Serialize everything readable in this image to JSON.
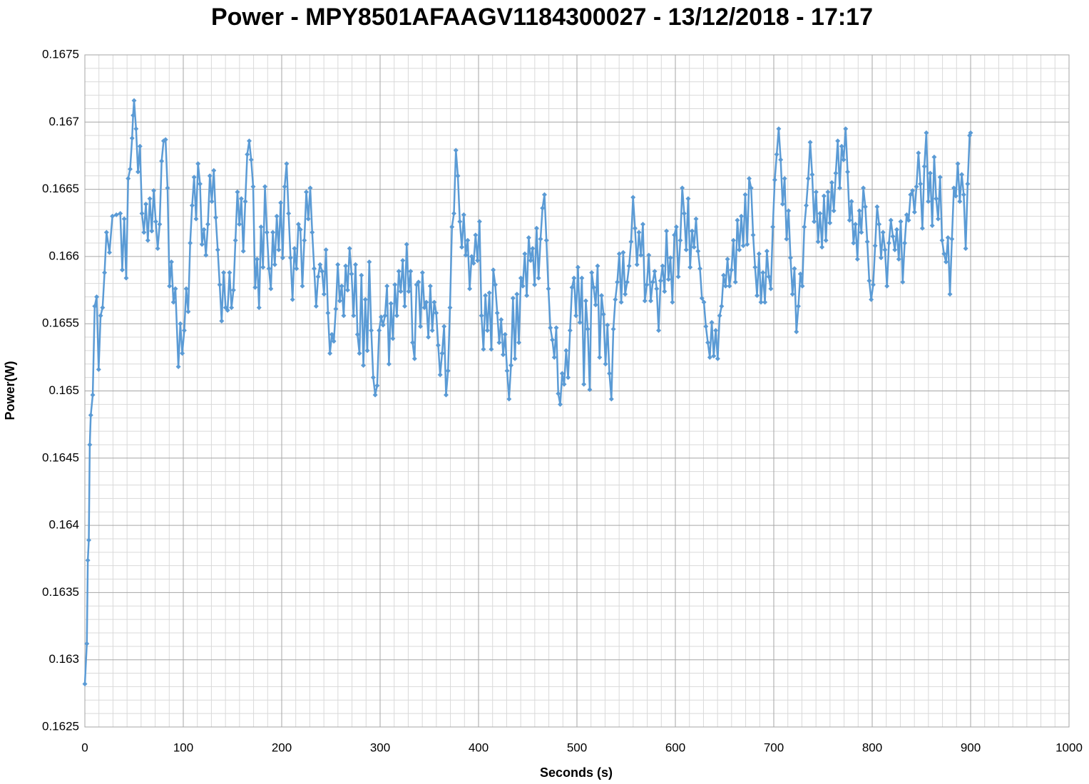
{
  "chart_data": {
    "type": "line",
    "title": "Power - MPY8501AFAAGV1184300027 - 13/12/2018 - 17:17",
    "xlabel": "Seconds (s)",
    "ylabel": "Power(W)",
    "xlim": [
      0,
      1000
    ],
    "xticks": [
      0,
      100,
      200,
      300,
      400,
      500,
      600,
      700,
      800,
      900,
      1000
    ],
    "ylim": [
      0.1625,
      0.1675
    ],
    "yticks": [
      0.1625,
      0.163,
      0.1635,
      0.164,
      0.1645,
      0.165,
      0.1655,
      0.166,
      0.1665,
      0.167,
      0.1675
    ],
    "grid": true,
    "x": [
      0,
      2,
      3,
      4,
      5,
      6,
      8,
      10,
      12,
      14,
      16,
      18,
      20,
      22,
      25,
      28,
      32,
      36,
      38,
      40,
      42,
      44,
      46,
      48,
      49,
      50,
      52,
      54,
      56,
      58,
      60,
      62,
      64,
      66,
      68,
      70,
      72,
      74,
      76,
      78,
      80,
      82,
      84,
      86,
      88,
      90,
      92,
      95,
      97,
      99,
      101,
      103,
      105,
      107,
      109,
      111,
      113,
      115,
      117,
      119,
      121,
      123,
      125,
      127,
      129,
      131,
      133,
      135,
      137,
      139,
      141,
      143,
      145,
      147,
      149,
      151,
      153,
      155,
      157,
      159,
      161,
      163,
      165,
      167,
      169,
      171,
      173,
      175,
      177,
      179,
      181,
      183,
      185,
      187,
      189,
      191,
      193,
      195,
      197,
      199,
      201,
      203,
      205,
      207,
      209,
      211,
      213,
      215,
      217,
      219,
      221,
      223,
      225,
      227,
      229,
      231,
      233,
      235,
      237,
      239,
      241,
      243,
      245,
      247,
      249,
      251,
      253,
      255,
      257,
      259,
      261,
      263,
      265,
      267,
      269,
      271,
      273,
      275,
      277,
      279,
      281,
      283,
      285,
      287,
      289,
      291,
      293,
      295,
      297,
      299,
      301,
      303,
      305,
      307,
      309,
      311,
      313,
      315,
      317,
      319,
      321,
      323,
      325,
      327,
      329,
      331,
      333,
      335,
      337,
      339,
      341,
      343,
      345,
      347,
      349,
      351,
      353,
      355,
      357,
      359,
      361,
      363,
      365,
      367,
      369,
      371,
      373,
      375,
      377,
      379,
      381,
      383,
      385,
      387,
      389,
      391,
      393,
      395,
      397,
      399,
      401,
      403,
      405,
      407,
      409,
      411,
      413,
      415,
      417,
      419,
      421,
      423,
      425,
      427,
      429,
      431,
      433,
      435,
      437,
      439,
      441,
      443,
      445,
      447,
      449,
      451,
      453,
      455,
      457,
      459,
      461,
      463,
      465,
      467,
      469,
      471,
      473,
      475,
      477,
      479,
      481,
      483,
      485,
      487,
      489,
      491,
      493,
      495,
      497,
      499,
      501,
      503,
      505,
      507,
      509,
      511,
      513,
      515,
      517,
      519,
      521,
      523,
      525,
      527,
      529,
      531,
      533,
      535,
      537,
      539,
      541,
      543,
      545,
      547,
      549,
      551,
      553,
      555,
      557,
      559,
      561,
      563,
      565,
      567,
      569,
      571,
      573,
      575,
      577,
      579,
      581,
      583,
      585,
      587,
      589,
      591,
      593,
      595,
      597,
      599,
      601,
      603,
      605,
      607,
      609,
      611,
      613,
      615,
      617,
      619,
      621,
      623,
      625,
      627,
      629,
      631,
      633,
      635,
      637,
      639,
      641,
      643,
      645,
      647,
      649,
      651,
      653,
      655,
      657,
      659,
      661,
      663,
      665,
      667,
      669,
      671,
      673,
      675,
      677,
      679,
      681,
      683,
      685,
      687,
      689,
      691,
      693,
      695,
      697,
      699,
      701,
      703,
      705,
      707,
      709,
      711,
      713,
      715,
      717,
      719,
      721,
      723,
      725,
      727,
      729,
      731,
      733,
      735,
      737,
      739,
      741,
      743,
      745,
      747,
      749,
      751,
      753,
      755,
      757,
      759,
      761,
      763,
      765,
      767,
      769,
      771,
      773,
      775,
      777,
      779,
      781,
      783,
      785,
      787,
      789,
      791,
      793,
      795,
      797,
      799,
      801,
      803,
      805,
      807,
      809,
      811,
      813,
      815,
      817,
      819,
      821,
      823,
      825,
      827,
      829,
      831,
      833,
      835,
      837,
      839,
      841,
      843,
      845,
      847,
      849,
      851,
      853,
      855,
      857,
      859,
      861,
      863,
      865,
      867,
      869,
      871,
      873,
      875,
      877,
      879,
      881,
      883,
      885,
      887,
      889,
      891,
      893,
      895,
      897,
      899,
      900
    ],
    "series": [
      {
        "name": "Power",
        "color": "#5b9bd5",
        "values": [
          0.16282,
          0.16312,
          0.16374,
          0.16389,
          0.1646,
          0.16482,
          0.16497,
          0.16563,
          0.1657,
          0.16516,
          0.16556,
          0.16562,
          0.16588,
          0.16618,
          0.16603,
          0.1663,
          0.16631,
          0.16632,
          0.1659,
          0.16628,
          0.16584,
          0.16658,
          0.16665,
          0.16688,
          0.16705,
          0.16716,
          0.16695,
          0.16663,
          0.16682,
          0.16632,
          0.16618,
          0.16639,
          0.16612,
          0.16643,
          0.16619,
          0.16649,
          0.16626,
          0.16606,
          0.16624,
          0.16671,
          0.16686,
          0.16687,
          0.16651,
          0.16578,
          0.16596,
          0.16566,
          0.16576,
          0.16518,
          0.1655,
          0.16528,
          0.16545,
          0.16576,
          0.16559,
          0.1661,
          0.16638,
          0.16659,
          0.16628,
          0.16669,
          0.16654,
          0.16609,
          0.1662,
          0.16601,
          0.16624,
          0.1666,
          0.16641,
          0.16664,
          0.16629,
          0.16605,
          0.16579,
          0.16552,
          0.16588,
          0.16562,
          0.1656,
          0.16588,
          0.16562,
          0.16575,
          0.16612,
          0.16648,
          0.16624,
          0.16643,
          0.16604,
          0.16641,
          0.16676,
          0.16686,
          0.16672,
          0.16652,
          0.16577,
          0.16598,
          0.16562,
          0.16622,
          0.16592,
          0.16652,
          0.16618,
          0.16591,
          0.16576,
          0.16618,
          0.16594,
          0.1663,
          0.16605,
          0.1664,
          0.16599,
          0.16652,
          0.16669,
          0.16632,
          0.16599,
          0.16568,
          0.16606,
          0.16591,
          0.16624,
          0.1662,
          0.16578,
          0.16612,
          0.16648,
          0.16628,
          0.16651,
          0.16618,
          0.16591,
          0.16563,
          0.16585,
          0.16594,
          0.16589,
          0.16572,
          0.16605,
          0.16558,
          0.16528,
          0.16542,
          0.16537,
          0.16561,
          0.16594,
          0.16567,
          0.16578,
          0.16556,
          0.16593,
          0.16575,
          0.16606,
          0.16587,
          0.16556,
          0.16594,
          0.16542,
          0.16528,
          0.16586,
          0.16519,
          0.16568,
          0.1653,
          0.16596,
          0.16545,
          0.1651,
          0.16497,
          0.16504,
          0.16545,
          0.16555,
          0.16549,
          0.16556,
          0.16578,
          0.1652,
          0.16565,
          0.16539,
          0.16579,
          0.16556,
          0.16589,
          0.16574,
          0.16597,
          0.16563,
          0.16609,
          0.16574,
          0.16589,
          0.16536,
          0.16524,
          0.16579,
          0.16581,
          0.16548,
          0.16588,
          0.16562,
          0.16566,
          0.1654,
          0.16578,
          0.16545,
          0.16566,
          0.16558,
          0.16534,
          0.16512,
          0.16528,
          0.16548,
          0.16497,
          0.16515,
          0.16562,
          0.16622,
          0.16632,
          0.16679,
          0.1666,
          0.16626,
          0.16607,
          0.16631,
          0.16601,
          0.16612,
          0.16576,
          0.166,
          0.16595,
          0.16616,
          0.16597,
          0.16626,
          0.16556,
          0.16531,
          0.16571,
          0.16545,
          0.16573,
          0.16531,
          0.1659,
          0.16579,
          0.16558,
          0.16536,
          0.16553,
          0.16527,
          0.16542,
          0.16515,
          0.16494,
          0.16519,
          0.16569,
          0.16524,
          0.16572,
          0.16536,
          0.16584,
          0.16578,
          0.16602,
          0.16571,
          0.16614,
          0.16597,
          0.16606,
          0.16579,
          0.16621,
          0.16584,
          0.16613,
          0.16636,
          0.16646,
          0.16612,
          0.16576,
          0.16547,
          0.16538,
          0.16525,
          0.16547,
          0.16498,
          0.1649,
          0.16513,
          0.16505,
          0.1653,
          0.1651,
          0.16545,
          0.16577,
          0.16584,
          0.16556,
          0.16592,
          0.16551,
          0.16584,
          0.16505,
          0.16567,
          0.16546,
          0.16501,
          0.16588,
          0.16577,
          0.16564,
          0.16593,
          0.16525,
          0.16571,
          0.16557,
          0.1652,
          0.16549,
          0.16513,
          0.16494,
          0.16546,
          0.16568,
          0.16581,
          0.16602,
          0.16566,
          0.16603,
          0.16572,
          0.16581,
          0.16593,
          0.16611,
          0.16644,
          0.16621,
          0.16594,
          0.16618,
          0.16601,
          0.16624,
          0.16567,
          0.16579,
          0.16601,
          0.16567,
          0.16581,
          0.16589,
          0.16576,
          0.16545,
          0.16582,
          0.16593,
          0.16574,
          0.16619,
          0.16583,
          0.16599,
          0.16566,
          0.16616,
          0.16622,
          0.16585,
          0.16612,
          0.16651,
          0.16632,
          0.16605,
          0.16643,
          0.16592,
          0.16619,
          0.16607,
          0.16628,
          0.16604,
          0.16591,
          0.16569,
          0.16566,
          0.16548,
          0.16536,
          0.16525,
          0.16551,
          0.16526,
          0.16545,
          0.16524,
          0.16556,
          0.16563,
          0.16586,
          0.16578,
          0.16598,
          0.16578,
          0.1659,
          0.16612,
          0.16581,
          0.16627,
          0.16605,
          0.1663,
          0.16608,
          0.16646,
          0.16609,
          0.16658,
          0.16651,
          0.16616,
          0.16592,
          0.16571,
          0.16602,
          0.16566,
          0.16588,
          0.16566,
          0.16604,
          0.16585,
          0.16576,
          0.16622,
          0.16657,
          0.16676,
          0.16695,
          0.16672,
          0.16639,
          0.16658,
          0.16613,
          0.16634,
          0.16599,
          0.16572,
          0.16591,
          0.16544,
          0.16563,
          0.16587,
          0.16578,
          0.16622,
          0.16638,
          0.16658,
          0.16685,
          0.16661,
          0.16626,
          0.16648,
          0.16611,
          0.16632,
          0.16607,
          0.16645,
          0.16612,
          0.16648,
          0.16625,
          0.16655,
          0.16634,
          0.16662,
          0.16686,
          0.16651,
          0.16682,
          0.16672,
          0.16695,
          0.16663,
          0.16627,
          0.16641,
          0.1661,
          0.16624,
          0.16598,
          0.16634,
          0.16618,
          0.16651,
          0.16637,
          0.16611,
          0.16582,
          0.16568,
          0.16579,
          0.16608,
          0.16637,
          0.16624,
          0.16599,
          0.16618,
          0.16605,
          0.16578,
          0.1661,
          0.16627,
          0.16615,
          0.16605,
          0.1662,
          0.16598,
          0.16626,
          0.16581,
          0.1661,
          0.16631,
          0.16627,
          0.16646,
          0.16649,
          0.16633,
          0.16652,
          0.16677,
          0.16654,
          0.16621,
          0.16667,
          0.16692,
          0.16641,
          0.16662,
          0.16623,
          0.16674,
          0.16643,
          0.16628,
          0.16659,
          0.16612,
          0.16602,
          0.16596,
          0.16614,
          0.16572,
          0.16613,
          0.16651,
          0.16645,
          0.16669,
          0.16641,
          0.16661,
          0.16646,
          0.16606,
          0.16654,
          0.1669,
          0.16692
        ]
      }
    ]
  }
}
